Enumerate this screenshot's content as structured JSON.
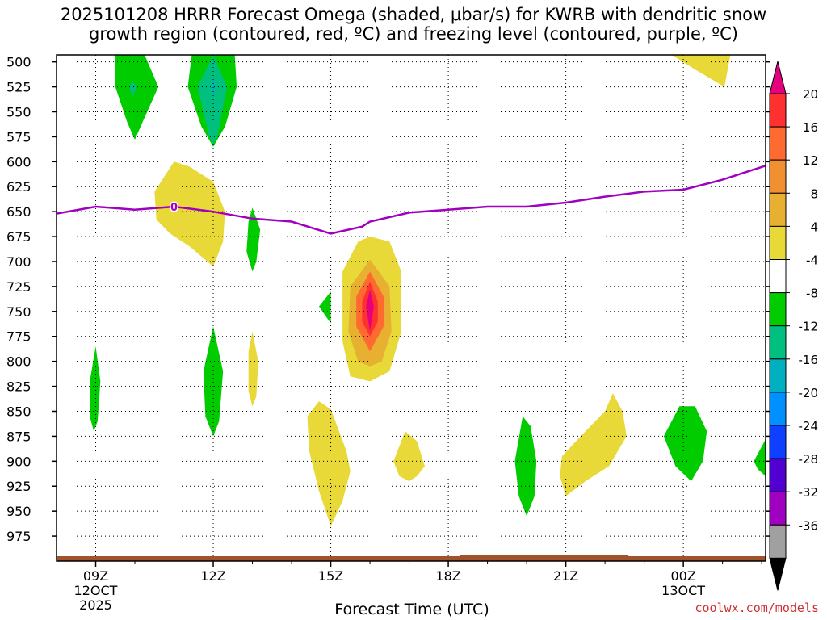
{
  "chart_data": {
    "type": "contour-timeheight",
    "title_line1": "2025101208 HRRR Forecast Omega (shaded, μbar/s) for KWRB with dendritic snow",
    "title_line2": "growth region (contoured, red, ºC) and freezing level (contoured, purple, ºC)",
    "xlabel": "Forecast Time (UTC)",
    "ylabel": "",
    "y_ticks": [
      500,
      525,
      550,
      575,
      600,
      625,
      650,
      675,
      700,
      725,
      750,
      775,
      800,
      825,
      850,
      875,
      900,
      925,
      950,
      975
    ],
    "y_range": [
      493,
      1000
    ],
    "x_range": [
      8,
      26.1
    ],
    "x_ticks": [
      {
        "hour": 9,
        "label": "09Z",
        "sub1": "12OCT",
        "sub2": "2025"
      },
      {
        "hour": 12,
        "label": "12Z",
        "sub1": "",
        "sub2": ""
      },
      {
        "hour": 15,
        "label": "15Z",
        "sub1": "",
        "sub2": ""
      },
      {
        "hour": 18,
        "label": "18Z",
        "sub1": "",
        "sub2": ""
      },
      {
        "hour": 21,
        "label": "21Z",
        "sub1": "",
        "sub2": ""
      },
      {
        "hour": 24,
        "label": "00Z",
        "sub1": "13OCT",
        "sub2": ""
      }
    ],
    "colorbar": {
      "labels": [
        "20",
        "16",
        "12",
        "8",
        "4",
        "-4",
        "-8",
        "-12",
        "-16",
        "-20",
        "-24",
        "-28",
        "-32",
        "-36"
      ],
      "colors": [
        "#e6007e",
        "#ff3030",
        "#ff6a30",
        "#f09030",
        "#e8b030",
        "#e8d838",
        "#ffffff",
        "#00cc00",
        "#00c080",
        "#00b0c0",
        "#0090ff",
        "#1040ff",
        "#5000d0",
        "#a000c0",
        "#a0a0a0",
        "#000000"
      ]
    },
    "freezing_level": {
      "label": "0",
      "color": "#a000c0",
      "points": [
        [
          8.0,
          652
        ],
        [
          9.0,
          645
        ],
        [
          10.0,
          648
        ],
        [
          11.0,
          645
        ],
        [
          12.0,
          650
        ],
        [
          13.0,
          657
        ],
        [
          14.0,
          660
        ],
        [
          15.0,
          672
        ],
        [
          15.8,
          665
        ],
        [
          16.0,
          660
        ],
        [
          17.0,
          651
        ],
        [
          18.0,
          648
        ],
        [
          19.0,
          645
        ],
        [
          20.0,
          645
        ],
        [
          21.0,
          641
        ],
        [
          22.0,
          635
        ],
        [
          23.0,
          630
        ],
        [
          24.0,
          628
        ],
        [
          25.0,
          618
        ],
        [
          26.1,
          604
        ]
      ]
    },
    "omega_regions": [
      {
        "color": "#00cc00",
        "points": [
          [
            9.5,
            493
          ],
          [
            10.25,
            493
          ],
          [
            10.6,
            525
          ],
          [
            10.2,
            560
          ],
          [
            10.0,
            578
          ],
          [
            9.8,
            560
          ],
          [
            9.5,
            525
          ]
        ]
      },
      {
        "color": "#00c080",
        "points": [
          [
            9.95,
            520
          ],
          [
            10.05,
            525
          ],
          [
            9.95,
            535
          ],
          [
            9.85,
            525
          ]
        ]
      },
      {
        "color": "#00cc00",
        "points": [
          [
            11.45,
            493
          ],
          [
            12.55,
            493
          ],
          [
            12.6,
            525
          ],
          [
            12.3,
            565
          ],
          [
            12.0,
            585
          ],
          [
            11.7,
            565
          ],
          [
            11.35,
            525
          ]
        ]
      },
      {
        "color": "#00c080",
        "points": [
          [
            12.0,
            493
          ],
          [
            12.35,
            525
          ],
          [
            12.1,
            575
          ],
          [
            12.0,
            582
          ],
          [
            11.9,
            575
          ],
          [
            11.6,
            525
          ]
        ]
      },
      {
        "color": "#00b0c0",
        "points": [
          [
            12.0,
            515
          ],
          [
            12.05,
            525
          ],
          [
            12.0,
            535
          ],
          [
            11.95,
            525
          ]
        ]
      },
      {
        "color": "#e8d838",
        "points": [
          [
            10.5,
            630
          ],
          [
            11.0,
            600
          ],
          [
            11.4,
            605
          ],
          [
            12.0,
            620
          ],
          [
            12.3,
            650
          ],
          [
            12.25,
            680
          ],
          [
            12.0,
            705
          ],
          [
            11.4,
            685
          ],
          [
            10.9,
            672
          ],
          [
            10.55,
            658
          ]
        ]
      },
      {
        "color": "#00cc00",
        "points": [
          [
            13.0,
            646
          ],
          [
            13.2,
            668
          ],
          [
            13.1,
            700
          ],
          [
            13.0,
            710
          ],
          [
            12.85,
            690
          ],
          [
            12.9,
            660
          ]
        ]
      },
      {
        "color": "#00cc00",
        "points": [
          [
            15.0,
            730
          ],
          [
            15.0,
            762
          ],
          [
            14.7,
            745
          ]
        ]
      },
      {
        "color": "#e8d838",
        "points": [
          [
            15.3,
            710
          ],
          [
            15.7,
            680
          ],
          [
            16.0,
            675
          ],
          [
            16.5,
            680
          ],
          [
            16.8,
            710
          ],
          [
            16.8,
            770
          ],
          [
            16.5,
            810
          ],
          [
            16.0,
            820
          ],
          [
            15.5,
            815
          ],
          [
            15.3,
            780
          ]
        ]
      },
      {
        "color": "#e8b030",
        "points": [
          [
            15.5,
            725
          ],
          [
            16.0,
            698
          ],
          [
            16.5,
            725
          ],
          [
            16.55,
            770
          ],
          [
            16.3,
            800
          ],
          [
            16.0,
            805
          ],
          [
            15.7,
            800
          ],
          [
            15.45,
            770
          ]
        ]
      },
      {
        "color": "#ff6a30",
        "points": [
          [
            15.65,
            735
          ],
          [
            16.0,
            710
          ],
          [
            16.35,
            735
          ],
          [
            16.35,
            765
          ],
          [
            16.0,
            790
          ],
          [
            15.65,
            765
          ]
        ]
      },
      {
        "color": "#ff3030",
        "points": [
          [
            15.8,
            740
          ],
          [
            16.0,
            720
          ],
          [
            16.2,
            740
          ],
          [
            16.2,
            760
          ],
          [
            16.0,
            775
          ],
          [
            15.8,
            760
          ]
        ]
      },
      {
        "color": "#e6007e",
        "points": [
          [
            15.9,
            745
          ],
          [
            16.0,
            728
          ],
          [
            16.1,
            745
          ],
          [
            16.0,
            770
          ]
        ]
      },
      {
        "color": "#00cc00",
        "points": [
          [
            8.85,
            820
          ],
          [
            9.0,
            785
          ],
          [
            9.12,
            820
          ],
          [
            9.05,
            860
          ],
          [
            8.95,
            870
          ],
          [
            8.85,
            855
          ]
        ]
      },
      {
        "color": "#00cc00",
        "points": [
          [
            11.75,
            810
          ],
          [
            12.0,
            765
          ],
          [
            12.25,
            810
          ],
          [
            12.15,
            860
          ],
          [
            12.0,
            875
          ],
          [
            11.8,
            855
          ]
        ]
      },
      {
        "color": "#e8d838",
        "points": [
          [
            12.9,
            790
          ],
          [
            13.0,
            770
          ],
          [
            13.15,
            800
          ],
          [
            13.1,
            835
          ],
          [
            13.0,
            845
          ],
          [
            12.9,
            830
          ]
        ]
      },
      {
        "color": "#e8d838",
        "points": [
          [
            14.4,
            855
          ],
          [
            14.7,
            840
          ],
          [
            15.0,
            848
          ],
          [
            15.4,
            890
          ],
          [
            15.5,
            910
          ],
          [
            15.3,
            940
          ],
          [
            15.0,
            965
          ],
          [
            14.7,
            930
          ],
          [
            14.45,
            890
          ]
        ]
      },
      {
        "color": "#e8d838",
        "points": [
          [
            16.6,
            900
          ],
          [
            16.9,
            870
          ],
          [
            17.2,
            880
          ],
          [
            17.4,
            905
          ],
          [
            17.2,
            915
          ],
          [
            17.0,
            920
          ],
          [
            16.75,
            915
          ]
        ]
      },
      {
        "color": "#00cc00",
        "points": [
          [
            19.7,
            900
          ],
          [
            19.9,
            855
          ],
          [
            20.1,
            865
          ],
          [
            20.25,
            900
          ],
          [
            20.2,
            935
          ],
          [
            20.0,
            955
          ],
          [
            19.8,
            935
          ]
        ]
      },
      {
        "color": "#e8d838",
        "points": [
          [
            20.9,
            895
          ],
          [
            21.5,
            870
          ],
          [
            22.0,
            850
          ],
          [
            22.2,
            832
          ],
          [
            22.45,
            850
          ],
          [
            22.55,
            875
          ],
          [
            22.1,
            905
          ],
          [
            21.5,
            920
          ],
          [
            21.0,
            935
          ],
          [
            20.85,
            915
          ]
        ]
      },
      {
        "color": "#00cc00",
        "points": [
          [
            23.5,
            875
          ],
          [
            23.9,
            845
          ],
          [
            24.3,
            845
          ],
          [
            24.6,
            870
          ],
          [
            24.5,
            900
          ],
          [
            24.2,
            920
          ],
          [
            23.8,
            905
          ]
        ]
      },
      {
        "color": "#00cc00",
        "points": [
          [
            25.8,
            900
          ],
          [
            26.1,
            878
          ],
          [
            26.1,
            915
          ],
          [
            25.9,
            908
          ]
        ]
      },
      {
        "color": "#e8d838",
        "points": [
          [
            23.7,
            493
          ],
          [
            25.2,
            493
          ],
          [
            25.05,
            525
          ],
          [
            24.4,
            510
          ]
        ]
      }
    ],
    "surface_color": "#a0522d"
  },
  "credit": "coolwx.com/models"
}
